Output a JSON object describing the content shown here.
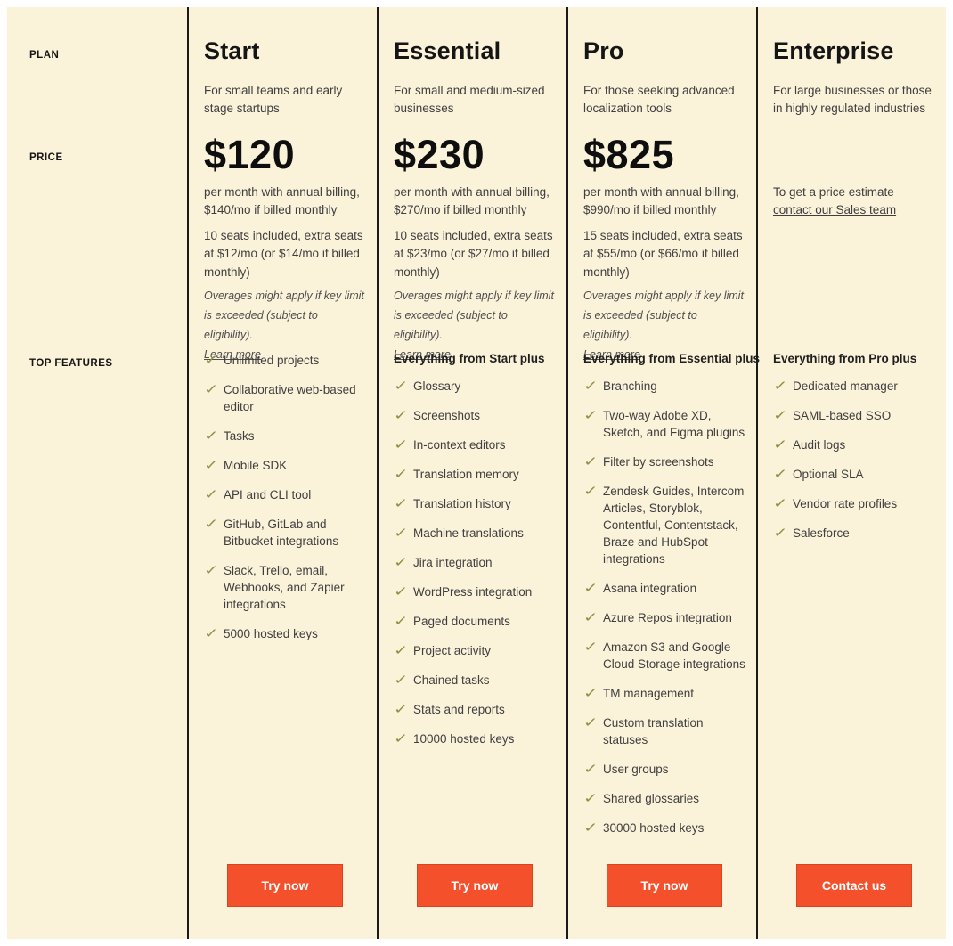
{
  "row_labels": {
    "plan": "PLAN",
    "price": "PRICE",
    "top_features": "TOP FEATURES"
  },
  "icons": {
    "check": "✓"
  },
  "colors": {
    "background": "#FBF2DA",
    "accent_orange": "#F4502C",
    "check_olive": "#8D9140",
    "divider": "#1A1A1A"
  },
  "plans": [
    {
      "name": "Start",
      "description": "For small teams and early stage startups",
      "price": "$120",
      "billing_note": "per month with annual billing, $140/mo if billed monthly",
      "seats_note": "10 seats included, extra seats at $12/mo (or $14/mo if billed monthly)",
      "overage_note": "Overages might apply if key limit is exceeded (subject to eligibility).",
      "learn_more_label": "Learn more",
      "features": [
        "Unlimited projects",
        "Collaborative web-based editor",
        "Tasks",
        "Mobile SDK",
        "API and CLI tool",
        "GitHub, GitLab and Bitbucket integrations",
        "Slack, Trello, email, Webhooks, and Zapier integrations",
        "5000 hosted keys"
      ],
      "cta_label": "Try now"
    },
    {
      "name": "Essential",
      "description": "For small and medium-sized businesses",
      "price": "$230",
      "billing_note": "per month with annual billing, $270/mo if billed monthly",
      "seats_note": "10 seats included, extra seats at $23/mo (or $27/mo if billed monthly)",
      "overage_note": "Overages might apply if key limit is exceeded (subject to eligibility).",
      "learn_more_label": "Learn more",
      "features_header": "Everything from Start plus",
      "features": [
        "Glossary",
        "Screenshots",
        "In-context editors",
        "Translation memory",
        "Translation history",
        "Machine translations",
        "Jira integration",
        "WordPress integration",
        "Paged documents",
        "Project activity",
        "Chained tasks",
        "Stats and reports",
        "10000 hosted keys"
      ],
      "cta_label": "Try now"
    },
    {
      "name": "Pro",
      "description": "For those seeking advanced localization tools",
      "price": "$825",
      "billing_note": "per month with annual billing, $990/mo if billed monthly",
      "seats_note": "15 seats included, extra seats at $55/mo (or $66/mo if billed monthly)",
      "overage_note": "Overages might apply if key limit is exceeded (subject to eligibility).",
      "learn_more_label": "Learn more",
      "features_header": "Everything from Essential plus",
      "features": [
        "Branching",
        "Two-way Adobe XD, Sketch, and Figma plugins",
        "Filter by screenshots",
        "Zendesk Guides, Intercom Articles, Storyblok, Contentful, Contentstack, Braze and HubSpot integrations",
        "Asana integration",
        "Azure Repos integration",
        "Amazon S3 and Google Cloud Storage integrations",
        "TM management",
        "Custom translation statuses",
        "User groups",
        "Shared glossaries",
        "30000 hosted keys"
      ],
      "cta_label": "Try now"
    },
    {
      "name": "Enterprise",
      "description": "For large businesses or those in highly regulated industries",
      "contact_prefix": "To get a price estimate ",
      "contact_link": "contact our Sales team",
      "features_header": "Everything from Pro plus",
      "features": [
        "Dedicated manager",
        "SAML-based SSO",
        "Audit logs",
        "Optional SLA",
        "Vendor rate profiles",
        "Salesforce"
      ],
      "cta_label": "Contact us"
    }
  ]
}
